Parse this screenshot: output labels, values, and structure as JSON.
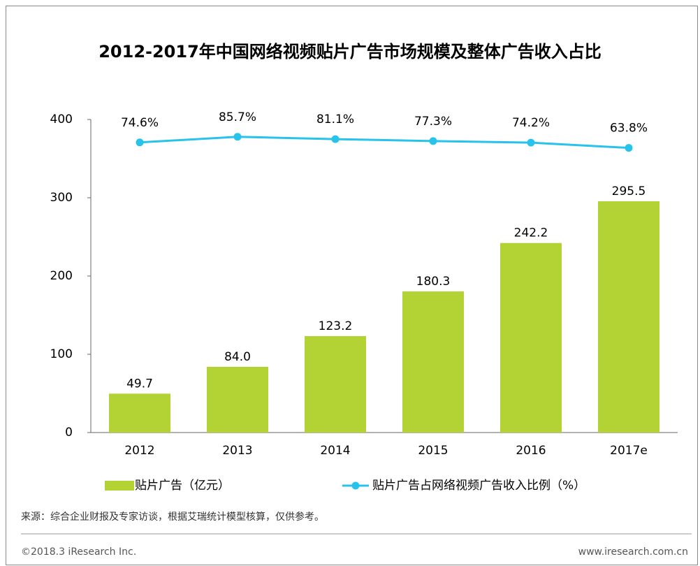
{
  "chart_data": {
    "type": "bar_line",
    "title": "2012-2017年中国网络视频贴片广告市场规模及整体广告收入占比",
    "categories": [
      "2012",
      "2013",
      "2014",
      "2015",
      "2016",
      "2017e"
    ],
    "series": [
      {
        "name": "贴片广告（亿元）",
        "color": "#b3d335",
        "type": "bar",
        "values": [
          49.7,
          84.0,
          123.2,
          180.3,
          242.2,
          295.5
        ],
        "value_labels": [
          "49.7",
          "84.0",
          "123.2",
          "180.3",
          "242.2",
          "295.5"
        ]
      },
      {
        "name": "贴片广告占网络视频广告收入比例（%）",
        "color": "#27c3ea",
        "type": "line",
        "axis": "y2",
        "values": [
          74.6,
          85.7,
          81.1,
          77.3,
          74.2,
          63.8
        ],
        "value_labels": [
          "74.6%",
          "85.7%",
          "81.1%",
          "77.3%",
          "74.2%",
          "63.8%"
        ]
      }
    ],
    "ylim": [
      0,
      400
    ],
    "yticks": [
      0,
      100,
      200,
      300,
      400
    ],
    "y2lim": [
      -500,
      120
    ],
    "source": "来源：综合企业财报及专家访谈，根据艾瑞统计模型核算，仅供参考。",
    "copyright": "©2018.3 iResearch Inc.",
    "website": "www.iresearch.com.cn"
  }
}
